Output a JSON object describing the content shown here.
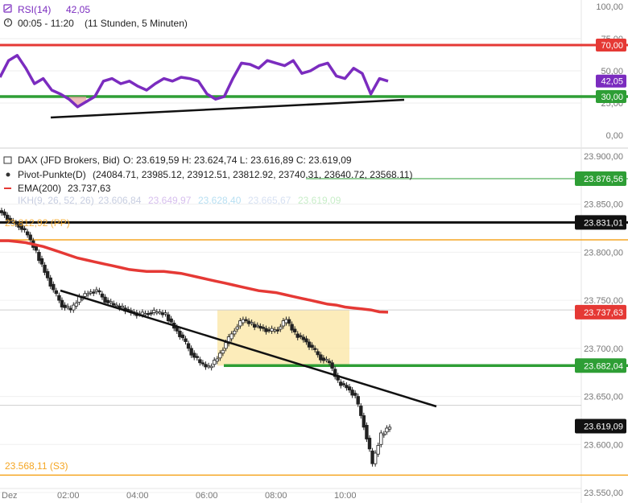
{
  "rsi_panel": {
    "title": "RSI(14)",
    "value": "42,05",
    "timeframe": "00:05 - 11:20",
    "duration": "(11 Stunden, 5 Minuten)",
    "ticks": [
      "100,00",
      "75,00",
      "50,00",
      "25,00",
      "0,00"
    ],
    "badges": [
      {
        "label": "70,00",
        "color": "#e53935"
      },
      {
        "label": "42,05",
        "color": "#7b2cbf"
      },
      {
        "label": "30,00",
        "color": "#2e9e35"
      }
    ]
  },
  "price_panel": {
    "symbol": "DAX (JFD Brokers, Bid)",
    "ohlc": "O: 23.619,59  H: 23.624,74  L: 23.616,89  C: 23.619,09",
    "pivot_label": "Pivot-Punkte(D)",
    "pivot_values": "(24084.71, 23985.12, 23912.51, 23812.92, 23740.31, 23640.72, 23568.11)",
    "ema_label": "EMA(200)",
    "ema_value": "23.737,63",
    "ikh_label": "IKH(9, 26, 52, 26)",
    "ikh_values": [
      "23.606,84",
      "23.649,97",
      "23.628,40",
      "23.665,67",
      "23.619,09"
    ],
    "pp_label": "23.812,92 (PP)",
    "s3_label": "23.568,11 (S3)",
    "ticks": [
      "23.900,00",
      "23.850,00",
      "23.800,00",
      "23.750,00",
      "23.700,00",
      "23.650,00",
      "23.600,00",
      "23.550,00"
    ],
    "badges": [
      {
        "label": "23.876,56",
        "color": "#2e9e35"
      },
      {
        "label": "23.831,01",
        "color": "#111111"
      },
      {
        "label": "23.737,63",
        "color": "#e53935"
      },
      {
        "label": "23.682,04",
        "color": "#2e9e35"
      },
      {
        "label": "23.619,09",
        "color": "#111111"
      }
    ]
  },
  "x_axis": {
    "labels": [
      "Dez",
      "02:00",
      "04:00",
      "06:00",
      "08:00",
      "10:00"
    ]
  },
  "colors": {
    "rsi_line": "#7b2cbf",
    "overbought": "#e53935",
    "oversold": "#2e9e35",
    "ema": "#e53935",
    "pivot": "#f5a623",
    "support": "#2e9e35",
    "zone": "#fbe7a9"
  },
  "chart_data": [
    {
      "type": "line",
      "title": "RSI(14)",
      "ylim": [
        0,
        100
      ],
      "levels": [
        70,
        30
      ],
      "current": 42.05,
      "x": [
        "00:05",
        "00:20",
        "00:35",
        "00:50",
        "01:05",
        "01:20",
        "01:35",
        "01:50",
        "02:05",
        "02:20",
        "02:35",
        "02:50",
        "03:05",
        "03:20",
        "03:35",
        "03:50",
        "04:05",
        "04:20",
        "04:35",
        "04:50",
        "05:05",
        "05:20",
        "05:35",
        "05:50",
        "06:05",
        "06:20",
        "06:35",
        "06:50",
        "07:05",
        "07:20",
        "07:35",
        "07:50",
        "08:05",
        "08:20",
        "08:35",
        "08:50",
        "09:05",
        "09:20",
        "09:35",
        "09:50",
        "10:05",
        "10:20",
        "10:35",
        "10:50",
        "11:05",
        "11:20"
      ],
      "values": [
        45,
        58,
        62,
        52,
        40,
        44,
        35,
        32,
        28,
        22,
        26,
        30,
        42,
        44,
        40,
        42,
        38,
        35,
        40,
        44,
        42,
        45,
        44,
        42,
        32,
        28,
        30,
        44,
        56,
        55,
        52,
        58,
        56,
        54,
        58,
        48,
        50,
        54,
        56,
        46,
        44,
        52,
        48,
        32,
        44,
        42
      ]
    },
    {
      "type": "line",
      "title": "DAX (JFD Brokers, Bid)",
      "ylim": [
        23545,
        23910
      ],
      "x": [
        "00:05",
        "00:20",
        "00:35",
        "00:50",
        "01:05",
        "01:20",
        "01:35",
        "01:50",
        "02:05",
        "02:20",
        "02:35",
        "02:50",
        "03:05",
        "03:20",
        "03:35",
        "03:50",
        "04:05",
        "04:20",
        "04:35",
        "04:50",
        "05:05",
        "05:20",
        "05:35",
        "05:50",
        "06:05",
        "06:20",
        "06:35",
        "06:50",
        "07:05",
        "07:20",
        "07:35",
        "07:50",
        "08:05",
        "08:20",
        "08:35",
        "08:50",
        "09:05",
        "09:20",
        "09:35",
        "09:50",
        "10:05",
        "10:20",
        "10:35",
        "10:50",
        "11:05",
        "11:20"
      ],
      "series": [
        {
          "name": "DAX (JFD Brokers, Bid)",
          "values": [
            23842,
            23832,
            23828,
            23818,
            23800,
            23780,
            23760,
            23745,
            23740,
            23752,
            23758,
            23760,
            23750,
            23745,
            23742,
            23738,
            23735,
            23737,
            23738,
            23735,
            23722,
            23710,
            23695,
            23685,
            23680,
            23690,
            23705,
            23720,
            23730,
            23725,
            23722,
            23718,
            23720,
            23730,
            23715,
            23710,
            23700,
            23690,
            23685,
            23665,
            23660,
            23650,
            23620,
            23580,
            23610,
            23619
          ]
        },
        {
          "name": "EMA(200)",
          "values": [
            23812,
            23812,
            23811,
            23810,
            23808,
            23806,
            23803,
            23800,
            23797,
            23794,
            23792,
            23790,
            23788,
            23786,
            23784,
            23782,
            23781,
            23780,
            23780,
            23780,
            23779,
            23778,
            23776,
            23774,
            23772,
            23770,
            23768,
            23766,
            23764,
            23762,
            23760,
            23759,
            23758,
            23756,
            23754,
            23752,
            23750,
            23748,
            23746,
            23745,
            23743,
            23742,
            23741,
            23740,
            23738,
            23737.63
          ]
        }
      ],
      "levels": {
        "pivot_pp": 23812.92,
        "s3": 23568.11,
        "resistance": 23831.01,
        "support": 23682.04,
        "r1": 23876.56
      },
      "consolidation_zone": {
        "x_start": "06:15",
        "x_end": "10:00",
        "y_low": 23682,
        "y_high": 23740
      }
    }
  ]
}
